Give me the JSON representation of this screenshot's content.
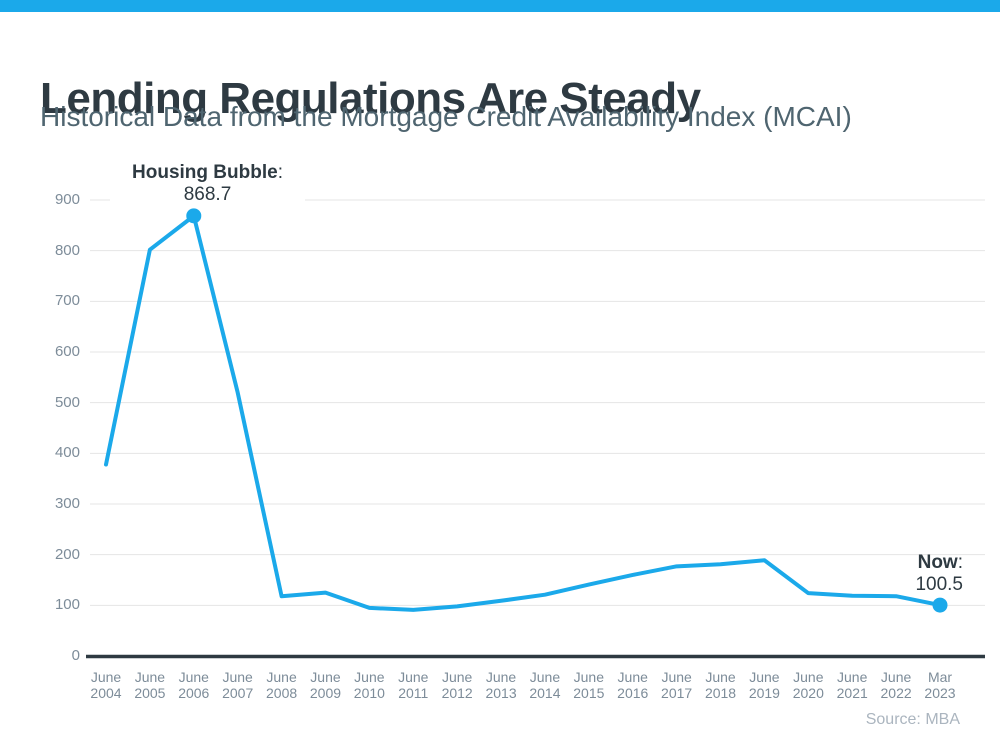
{
  "page": {
    "top_bar_color": "#1BA9EA",
    "title": "Lending Regulations Are Steady",
    "subtitle": "Historical Data from the Mortgage Credit Availability Index (MCAI)",
    "source": "Source: MBA"
  },
  "chart_data": {
    "type": "line",
    "title": "Lending Regulations Are Steady",
    "subtitle": "Historical Data from the Mortgage Credit Availability Index (MCAI)",
    "categories": [
      "June 2004",
      "June 2005",
      "June 2006",
      "June 2007",
      "June 2008",
      "June 2009",
      "June 2010",
      "June 2011",
      "June 2012",
      "June 2013",
      "June 2014",
      "June 2015",
      "June 2016",
      "June 2017",
      "June 2018",
      "June 2019",
      "June 2020",
      "June 2021",
      "June 2022",
      "Mar 2023"
    ],
    "values": [
      378,
      802,
      868.7,
      520,
      118,
      125,
      95,
      91,
      98,
      109,
      121,
      141,
      160,
      177,
      181,
      189,
      124,
      119,
      118,
      100.5
    ],
    "yticks": [
      0,
      100,
      200,
      300,
      400,
      500,
      600,
      700,
      800,
      900
    ],
    "ylim": [
      0,
      950
    ],
    "grid": true,
    "legend": "none",
    "line_color": "#1BA9EA",
    "grid_color": "#E4E4E4",
    "axis_color": "#2E3A42",
    "tick_label_color": "#7D8C99",
    "annotations": [
      {
        "label": "Housing Bubble",
        "separator": ":",
        "value": 868.7,
        "index": 2
      },
      {
        "label": "Now",
        "separator": ":",
        "value": 100.5,
        "index": 19
      }
    ]
  }
}
